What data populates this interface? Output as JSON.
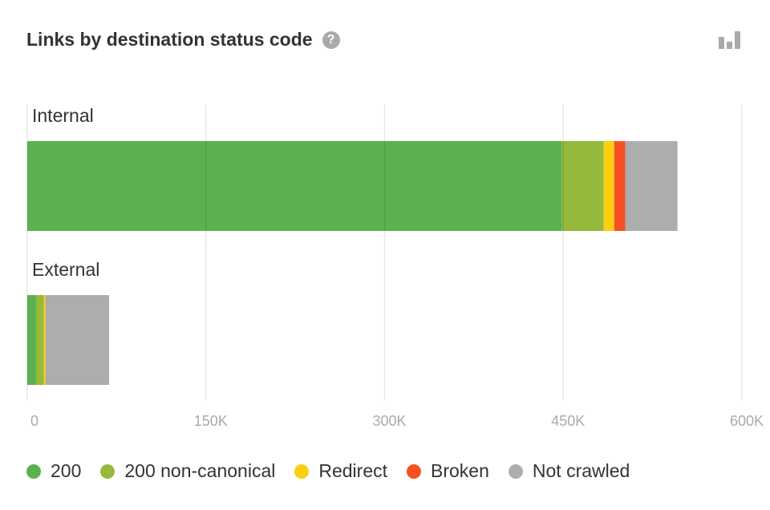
{
  "header": {
    "title": "Links by destination status code",
    "help_icon": "question-circle-icon",
    "chart_toggle_icon": "bar-chart-icon"
  },
  "chart_data": {
    "type": "bar",
    "orientation": "horizontal",
    "stacked": true,
    "categories": [
      "Internal",
      "External"
    ],
    "series": [
      {
        "name": "200",
        "color": "#5bb150",
        "values": [
          449000,
          7400
        ]
      },
      {
        "name": "200 non-canonical",
        "color": "#95b93a",
        "values": [
          35000,
          6500
        ]
      },
      {
        "name": "Redirect",
        "color": "#fbcf0f",
        "values": [
          8700,
          1300
        ]
      },
      {
        "name": "Broken",
        "color": "#f65123",
        "values": [
          9400,
          0
        ]
      },
      {
        "name": "Not crawled",
        "color": "#adadad",
        "values": [
          43800,
          53500
        ]
      }
    ],
    "xlim": [
      0,
      600000
    ],
    "xticks": [
      0,
      150000,
      300000,
      450000,
      600000
    ],
    "xtick_labels": [
      "0",
      "150K",
      "300K",
      "450K",
      "600K"
    ],
    "grid": true,
    "legend": "bottom"
  }
}
